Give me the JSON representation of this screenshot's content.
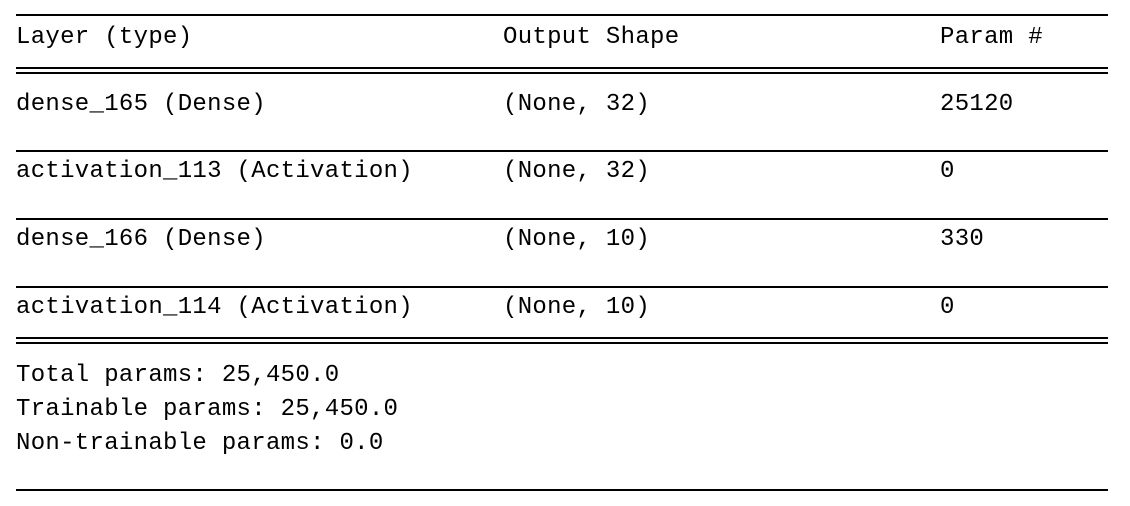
{
  "header": {
    "layer": "Layer (type)",
    "shape": "Output Shape",
    "param": "Param #"
  },
  "rows": [
    {
      "layer": "dense_165 (Dense)",
      "shape": "(None, 32)",
      "param": "25120"
    },
    {
      "layer": "activation_113 (Activation)",
      "shape": "(None, 32)",
      "param": "0"
    },
    {
      "layer": "dense_166 (Dense)",
      "shape": "(None, 10)",
      "param": "330"
    },
    {
      "layer": "activation_114 (Activation)",
      "shape": "(None, 10)",
      "param": "0"
    }
  ],
  "totals": {
    "total": "Total params: 25,450.0",
    "trainable": "Trainable params: 25,450.0",
    "non_trainable": "Non-trainable params: 0.0"
  }
}
